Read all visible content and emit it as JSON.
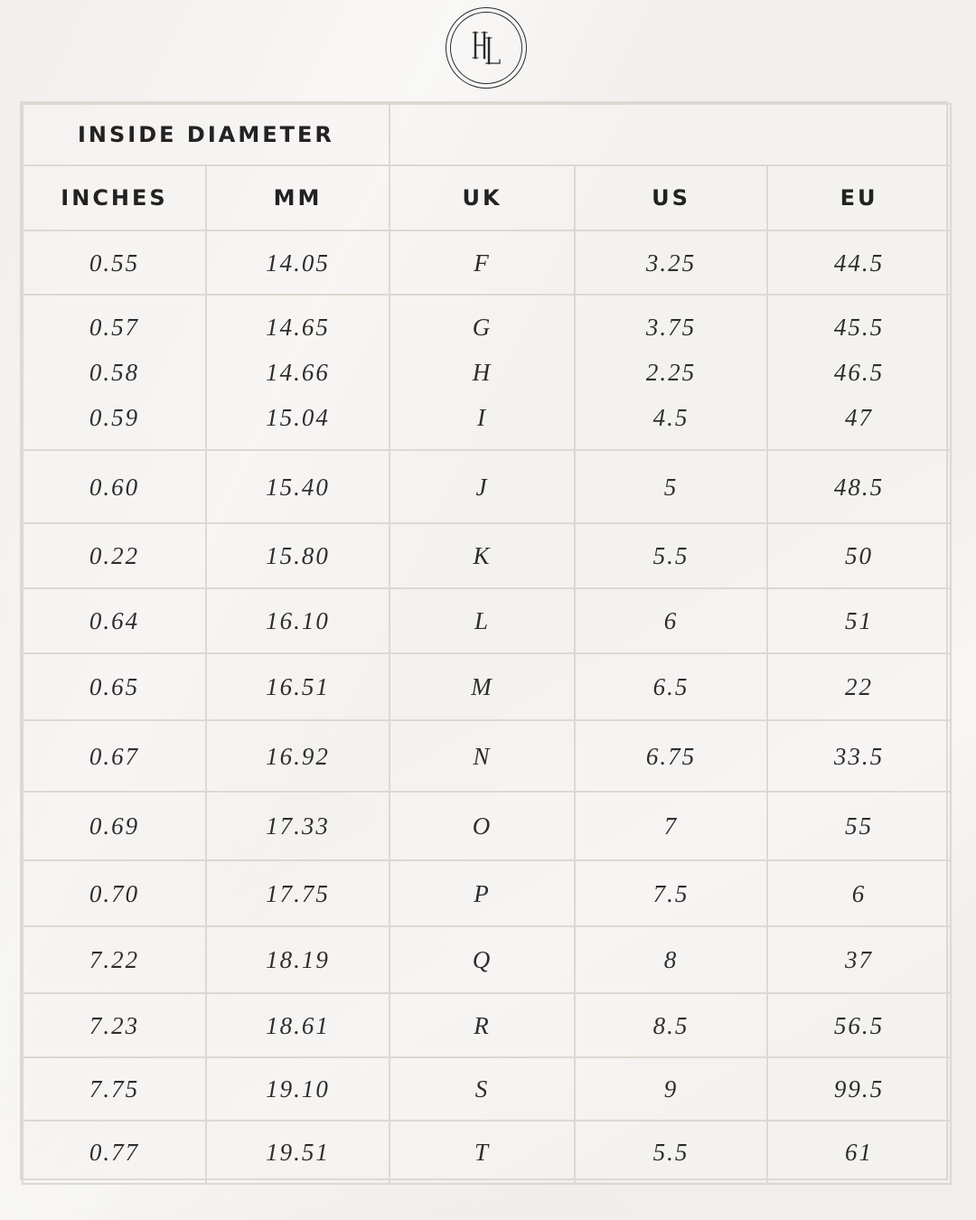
{
  "logo": {
    "monogram": "HL"
  },
  "table": {
    "title": "INSIDE DIAMETER",
    "headers": [
      "INCHES",
      "MM",
      "UK",
      "US",
      "EU"
    ],
    "rows": [
      {
        "inches": [
          "0.55"
        ],
        "mm": [
          "14.05"
        ],
        "uk": [
          "F"
        ],
        "us": [
          "3.25"
        ],
        "eu": [
          "44.5"
        ]
      },
      {
        "inches": [
          "0.57",
          "0.58",
          "0.59"
        ],
        "mm": [
          "14.65",
          "14.66",
          "15.04"
        ],
        "uk": [
          "G",
          "H",
          "I"
        ],
        "us": [
          "3.75",
          "2.25",
          "4.5"
        ],
        "eu": [
          "45.5",
          "46.5",
          "47"
        ]
      },
      {
        "inches": [
          "0.60"
        ],
        "mm": [
          "15.40"
        ],
        "uk": [
          "J"
        ],
        "us": [
          "5"
        ],
        "eu": [
          "48.5"
        ]
      },
      {
        "inches": [
          "0.22"
        ],
        "mm": [
          "15.80"
        ],
        "uk": [
          "K"
        ],
        "us": [
          "5.5"
        ],
        "eu": [
          "50"
        ]
      },
      {
        "inches": [
          "0.64"
        ],
        "mm": [
          "16.10"
        ],
        "uk": [
          "L"
        ],
        "us": [
          "6"
        ],
        "eu": [
          "51"
        ]
      },
      {
        "inches": [
          "0.65"
        ],
        "mm": [
          "16.51"
        ],
        "uk": [
          "M"
        ],
        "us": [
          "6.5"
        ],
        "eu": [
          "22"
        ]
      },
      {
        "inches": [
          "0.67"
        ],
        "mm": [
          "16.92"
        ],
        "uk": [
          "N"
        ],
        "us": [
          "6.75"
        ],
        "eu": [
          "33.5"
        ]
      },
      {
        "inches": [
          "0.69"
        ],
        "mm": [
          "17.33"
        ],
        "uk": [
          "O"
        ],
        "us": [
          "7"
        ],
        "eu": [
          "55"
        ]
      },
      {
        "inches": [
          "0.70"
        ],
        "mm": [
          "17.75"
        ],
        "uk": [
          "P"
        ],
        "us": [
          "7.5"
        ],
        "eu": [
          "6"
        ]
      },
      {
        "inches": [
          "7.22"
        ],
        "mm": [
          "18.19"
        ],
        "uk": [
          "Q"
        ],
        "us": [
          "8"
        ],
        "eu": [
          "37"
        ]
      },
      {
        "inches": [
          "7.23"
        ],
        "mm": [
          "18.61"
        ],
        "uk": [
          "R"
        ],
        "us": [
          "8.5"
        ],
        "eu": [
          "56.5"
        ]
      },
      {
        "inches": [
          "7.75"
        ],
        "mm": [
          "19.10"
        ],
        "uk": [
          "S"
        ],
        "us": [
          "9"
        ],
        "eu": [
          "99.5"
        ]
      },
      {
        "inches": [
          "0.77"
        ],
        "mm": [
          "19.51"
        ],
        "uk": [
          "T"
        ],
        "us": [
          "5.5"
        ],
        "eu": [
          "61"
        ]
      }
    ]
  }
}
